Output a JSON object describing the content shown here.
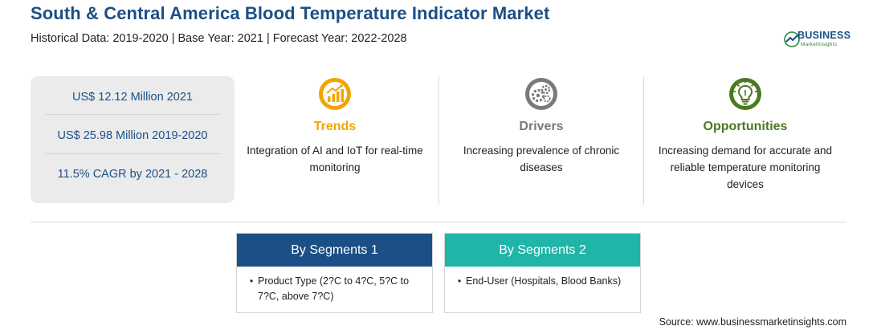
{
  "header": {
    "title": "South & Central America Blood Temperature Indicator Market",
    "subtitle": "Historical Data: 2019-2020 | Base Year: 2021 | Forecast Year: 2022-2028"
  },
  "logo": {
    "word": "BUSINESS",
    "sub": "MarketInsights"
  },
  "stats": [
    "US$ 12.12 Million 2021",
    "US$ 25.98 Million 2019-2020",
    "11.5% CAGR by 2021 - 2028"
  ],
  "columns": [
    {
      "heading": "Trends",
      "color": "#f0a500",
      "icon": "chart-growth-icon",
      "lines": [
        "Integration of AI and IoT for real-time",
        "monitoring"
      ]
    },
    {
      "heading": "Drivers",
      "color": "#7a7a7a",
      "icon": "gears-icon",
      "lines": [
        "Increasing prevalence of chronic",
        "diseases"
      ]
    },
    {
      "heading": "Opportunities",
      "color": "#4a7a1e",
      "icon": "lightbulb-icon",
      "lines": [
        "Increasing demand for accurate and",
        "reliable temperature monitoring",
        "devices"
      ]
    }
  ],
  "segments": [
    {
      "title": "By Segments 1",
      "color": "#1b4f86",
      "items": [
        "Product Type (2?C to 4?C, 5?C to 7?C, above 7?C)"
      ]
    },
    {
      "title": "By Segments 2",
      "color": "#1fb5a8",
      "items": [
        "End-User (Hospitals, Blood Banks)"
      ]
    }
  ],
  "bullet": "•",
  "source": "Source: www.businessmarketinsights.com"
}
